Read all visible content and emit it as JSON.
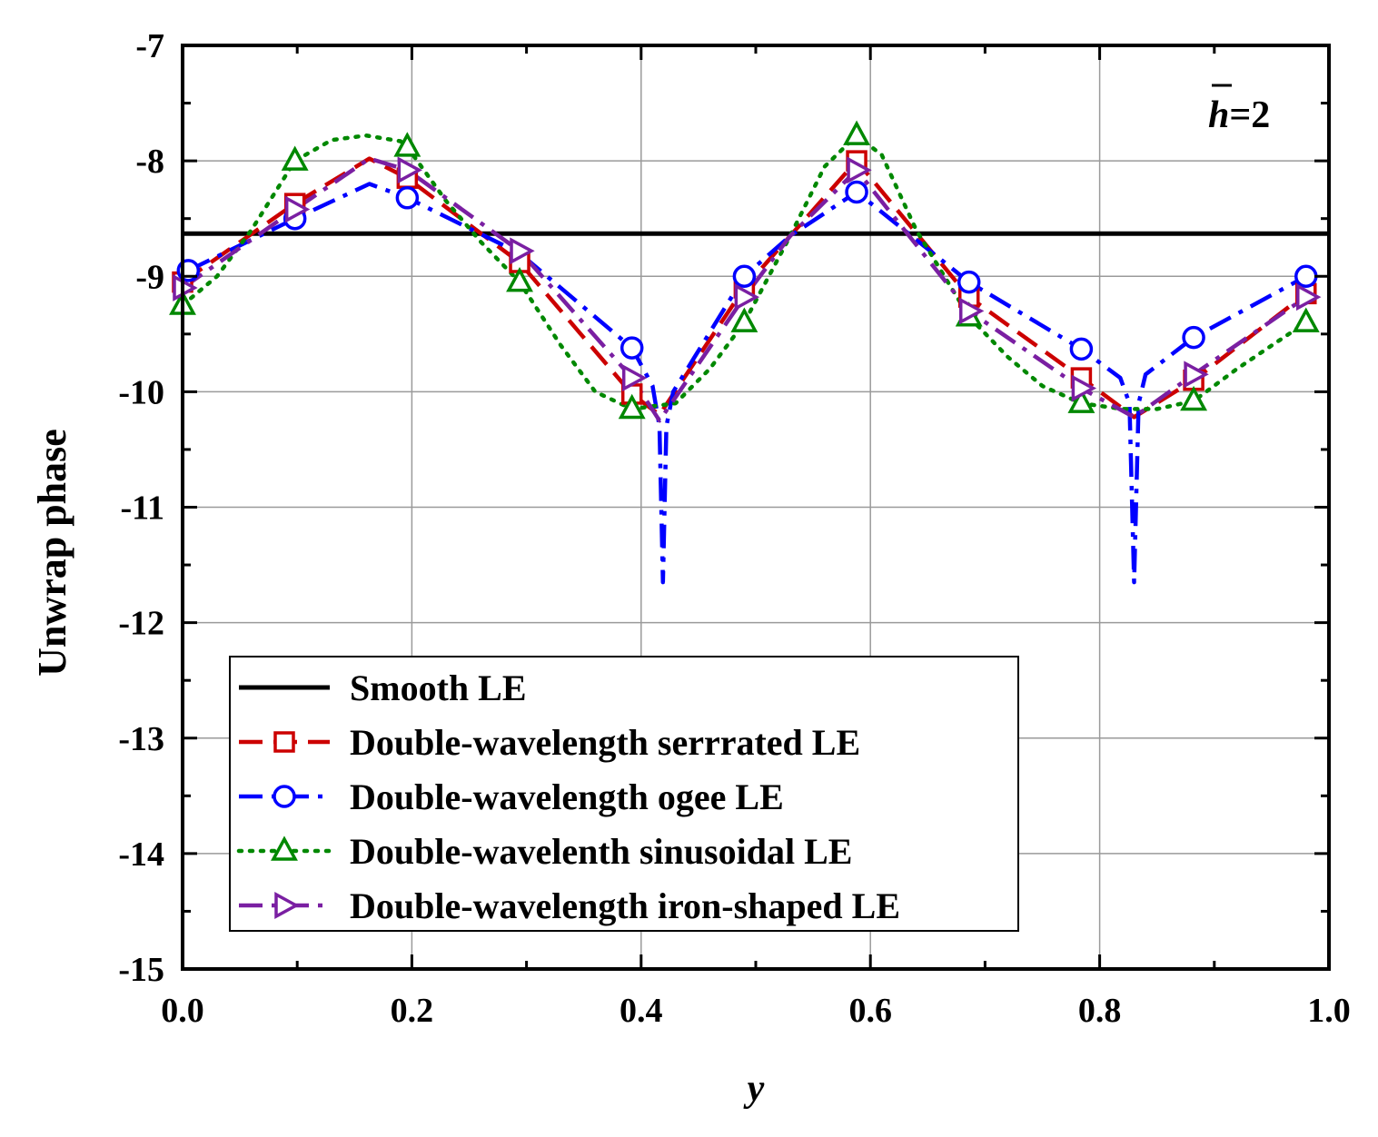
{
  "chart_data": {
    "type": "line",
    "title": "",
    "xlabel": "y",
    "ylabel": "Unwrap phase",
    "xlim": [
      0.0,
      1.0
    ],
    "ylim": [
      -15,
      -7
    ],
    "x_ticks": [
      "0.0",
      "0.2",
      "0.4",
      "0.6",
      "0.8",
      "1.0"
    ],
    "y_ticks": [
      "-7",
      "-8",
      "-9",
      "-10",
      "-11",
      "-12",
      "-13",
      "-14",
      "-15"
    ],
    "grid": true,
    "legend_position": "bottom-left",
    "annotation": {
      "symbol": "h",
      "suffix": "=2"
    },
    "colors": {
      "smooth": "#000000",
      "serrated": "#cc0000",
      "ogee": "#0000ff",
      "sinusoidal": "#008800",
      "iron": "#7a1fa2"
    },
    "series": [
      {
        "name": "Smooth LE",
        "key": "smooth",
        "marker": "none",
        "dash": "solid",
        "x": [
          0.0,
          1.0
        ],
        "y": [
          -8.63,
          -8.63
        ]
      },
      {
        "name": "Double-wavelength serrrated LE",
        "key": "serrated",
        "marker": "square",
        "dash": "dash",
        "x": [
          0.0,
          0.098,
          0.163,
          0.196,
          0.294,
          0.392,
          0.416,
          0.49,
          0.53,
          0.588,
          0.686,
          0.784,
          0.83,
          0.882,
          0.98
        ],
        "y": [
          -9.05,
          -8.37,
          -7.98,
          -8.15,
          -8.88,
          -10.02,
          -10.2,
          -9.1,
          -8.65,
          -8.0,
          -9.18,
          -9.88,
          -10.22,
          -9.9,
          -9.15
        ],
        "marker_idx": [
          0,
          1,
          3,
          4,
          5,
          7,
          9,
          10,
          11,
          13,
          14
        ]
      },
      {
        "name": "Double-wavelength ogee LE",
        "key": "ogee",
        "marker": "circle",
        "dash": "dashdot",
        "x": [
          0.005,
          0.098,
          0.163,
          0.196,
          0.294,
          0.392,
          0.41,
          0.416,
          0.419,
          0.422,
          0.428,
          0.49,
          0.53,
          0.588,
          0.686,
          0.784,
          0.818,
          0.826,
          0.83,
          0.834,
          0.84,
          0.882,
          0.98
        ],
        "y": [
          -8.95,
          -8.5,
          -8.2,
          -8.32,
          -8.8,
          -9.62,
          -9.95,
          -10.3,
          -11.65,
          -10.3,
          -10.0,
          -9.0,
          -8.65,
          -8.27,
          -9.05,
          -9.63,
          -9.88,
          -10.1,
          -11.65,
          -10.1,
          -9.85,
          -9.53,
          -9.0
        ],
        "marker_idx": [
          0,
          1,
          3,
          5,
          11,
          13,
          14,
          15,
          21,
          22
        ]
      },
      {
        "name": "Double-wavelenth sinusoidal LE",
        "key": "sinusoidal",
        "marker": "triangle",
        "dash": "dot",
        "x": [
          0.0,
          0.03,
          0.06,
          0.098,
          0.13,
          0.16,
          0.19,
          0.196,
          0.23,
          0.26,
          0.294,
          0.33,
          0.36,
          0.392,
          0.43,
          0.46,
          0.49,
          0.53,
          0.56,
          0.588,
          0.61,
          0.64,
          0.686,
          0.72,
          0.75,
          0.784,
          0.82,
          0.85,
          0.882,
          0.92,
          0.95,
          0.98
        ],
        "y": [
          -9.25,
          -9.0,
          -8.6,
          -8.0,
          -7.82,
          -7.78,
          -7.83,
          -7.88,
          -8.35,
          -8.7,
          -9.05,
          -9.6,
          -10.0,
          -10.15,
          -10.1,
          -9.8,
          -9.4,
          -8.65,
          -8.05,
          -7.78,
          -7.95,
          -8.6,
          -9.35,
          -9.7,
          -9.95,
          -10.1,
          -10.15,
          -10.15,
          -10.08,
          -9.8,
          -9.6,
          -9.4
        ],
        "marker_idx": [
          0,
          3,
          7,
          10,
          13,
          16,
          19,
          22,
          25,
          28,
          31
        ]
      },
      {
        "name": "Double-wavelength iron-shaped LE",
        "key": "iron",
        "marker": "tri-right",
        "dash": "dashdot",
        "x": [
          0.0,
          0.098,
          0.163,
          0.196,
          0.294,
          0.392,
          0.416,
          0.49,
          0.53,
          0.588,
          0.686,
          0.784,
          0.83,
          0.882,
          0.98
        ],
        "y": [
          -9.1,
          -8.42,
          -7.98,
          -8.08,
          -8.78,
          -9.88,
          -10.25,
          -9.18,
          -8.65,
          -8.08,
          -9.3,
          -9.97,
          -10.22,
          -9.85,
          -9.18
        ],
        "marker_idx": [
          0,
          1,
          3,
          4,
          5,
          7,
          9,
          10,
          11,
          13,
          14
        ]
      }
    ]
  }
}
